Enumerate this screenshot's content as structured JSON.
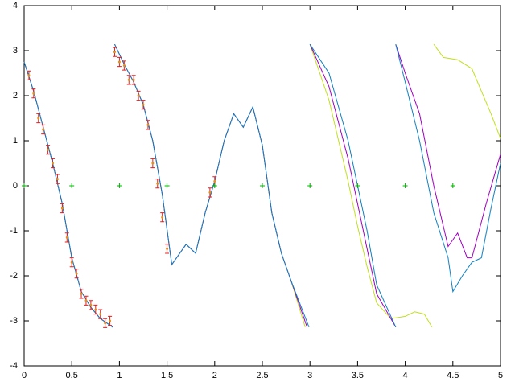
{
  "chart_data": {
    "type": "line",
    "xlim": [
      0,
      5
    ],
    "xticks": [
      0,
      0.5,
      1,
      1.5,
      2,
      2.5,
      3,
      3.5,
      4,
      4.5,
      5
    ],
    "ylim": [
      -4,
      4
    ],
    "yticks": [
      -4,
      -3,
      -2,
      -1,
      0,
      1,
      2,
      3,
      4
    ],
    "grid": false,
    "series": [
      {
        "style": "line",
        "color": "#c0e020",
        "x": [
          0,
          0.1,
          0.2,
          0.3,
          0.4,
          0.5,
          0.6,
          0.7,
          0.8,
          0.93,
          0.94,
          0.95,
          1.05,
          1.15,
          1.25,
          1.35,
          1.45,
          1.55,
          1.6,
          1.7,
          1.8,
          1.9,
          2.0,
          2.1,
          2.2,
          2.3,
          2.4,
          2.5,
          2.6,
          2.7,
          2.8,
          2.95,
          2.97,
          3.0,
          3.2,
          3.4,
          3.5,
          3.6,
          3.7,
          3.85,
          4.0,
          4.1,
          4.2,
          4.28,
          4.29,
          4.3,
          4.4,
          4.55,
          4.7,
          4.8,
          4.9,
          5.0
        ],
        "values": [
          2.75,
          2.1,
          1.3,
          0.5,
          -0.4,
          -1.6,
          -2.35,
          -2.7,
          -2.95,
          -3.14,
          null,
          3.14,
          2.7,
          2.3,
          1.8,
          1.0,
          -0.2,
          -1.75,
          -1.6,
          -1.3,
          -1.5,
          -0.6,
          0.1,
          1.0,
          1.6,
          1.3,
          1.75,
          0.9,
          -0.6,
          -1.5,
          -2.1,
          -3.14,
          null,
          3.14,
          1.9,
          0.1,
          -0.9,
          -1.8,
          -2.6,
          -2.95,
          -2.9,
          -2.8,
          -2.85,
          -3.14,
          null,
          3.14,
          2.85,
          2.8,
          2.6,
          2.1,
          1.6,
          1.05
        ]
      },
      {
        "style": "line",
        "color": "#a000c0",
        "x": [
          0,
          0.1,
          0.2,
          0.3,
          0.4,
          0.5,
          0.6,
          0.7,
          0.8,
          0.93,
          0.94,
          0.95,
          1.05,
          1.15,
          1.25,
          1.35,
          1.45,
          1.55,
          1.6,
          1.7,
          1.8,
          1.9,
          2.0,
          2.1,
          2.2,
          2.3,
          2.4,
          2.5,
          2.6,
          2.7,
          2.8,
          2.97,
          2.98,
          3.0,
          3.2,
          3.4,
          3.5,
          3.6,
          3.7,
          3.9,
          3.91,
          3.9,
          4.0,
          4.15,
          4.3,
          4.45,
          4.55,
          4.65,
          4.7,
          4.85,
          5.0
        ],
        "values": [
          2.75,
          2.1,
          1.3,
          0.5,
          -0.4,
          -1.6,
          -2.35,
          -2.7,
          -2.95,
          -3.14,
          null,
          3.14,
          2.7,
          2.3,
          1.8,
          1.0,
          -0.2,
          -1.75,
          -1.6,
          -1.3,
          -1.5,
          -0.6,
          0.1,
          1.0,
          1.6,
          1.3,
          1.75,
          0.9,
          -0.6,
          -1.5,
          -2.1,
          -3.14,
          null,
          3.14,
          2.2,
          0.6,
          -0.4,
          -1.4,
          -2.4,
          -3.14,
          null,
          3.14,
          2.5,
          1.6,
          0.0,
          -1.35,
          -1.05,
          -1.6,
          -1.6,
          -0.4,
          0.7
        ]
      },
      {
        "style": "line",
        "color": "#1080c0",
        "x": [
          0,
          0.1,
          0.2,
          0.3,
          0.4,
          0.5,
          0.6,
          0.7,
          0.8,
          0.93,
          0.94,
          0.95,
          1.05,
          1.15,
          1.25,
          1.35,
          1.45,
          1.55,
          1.6,
          1.7,
          1.8,
          1.9,
          2.0,
          2.1,
          2.2,
          2.3,
          2.4,
          2.5,
          2.6,
          2.7,
          2.8,
          2.99,
          2.995,
          3.0,
          3.2,
          3.4,
          3.5,
          3.6,
          3.7,
          3.9,
          3.91,
          3.9,
          4.0,
          4.15,
          4.3,
          4.45,
          4.5,
          4.6,
          4.7,
          4.8,
          4.9,
          5.0
        ],
        "values": [
          2.75,
          2.1,
          1.3,
          0.5,
          -0.4,
          -1.6,
          -2.35,
          -2.7,
          -2.95,
          -3.14,
          null,
          3.14,
          2.7,
          2.3,
          1.8,
          1.0,
          -0.2,
          -1.75,
          -1.6,
          -1.3,
          -1.5,
          -0.6,
          0.1,
          1.0,
          1.6,
          1.3,
          1.75,
          0.9,
          -0.6,
          -1.5,
          -2.1,
          -3.14,
          null,
          3.14,
          2.5,
          1.0,
          0.0,
          -1.0,
          -2.2,
          -3.14,
          null,
          3.14,
          2.3,
          1.0,
          -0.6,
          -1.6,
          -2.35,
          -2.0,
          -1.7,
          -1.6,
          -0.5,
          0.5
        ]
      },
      {
        "style": "errorbars",
        "color": "#e02020",
        "x": [
          0.05,
          0.1,
          0.15,
          0.2,
          0.25,
          0.3,
          0.35,
          0.4,
          0.45,
          0.5,
          0.55,
          0.6,
          0.65,
          0.7,
          0.75,
          0.8,
          0.85,
          0.9,
          0.95,
          1.0,
          1.05,
          1.1,
          1.15,
          1.2,
          1.25,
          1.3,
          1.35,
          1.4,
          1.45,
          1.5,
          1.95,
          2.0
        ],
        "values": [
          2.45,
          2.05,
          1.5,
          1.25,
          0.8,
          0.5,
          0.15,
          -0.5,
          -1.15,
          -1.7,
          -1.95,
          -2.4,
          -2.55,
          -2.65,
          -2.75,
          -2.85,
          -3.05,
          -3.0,
          2.97,
          2.75,
          2.67,
          2.35,
          2.35,
          2.0,
          1.8,
          1.35,
          0.5,
          0.05,
          -0.7,
          -1.4,
          -0.15,
          0.1
        ],
        "errors": [
          0.1,
          0.1,
          0.1,
          0.1,
          0.1,
          0.1,
          0.1,
          0.1,
          0.1,
          0.1,
          0.1,
          0.1,
          0.1,
          0.1,
          0.1,
          0.1,
          0.1,
          0.1,
          0.1,
          0.1,
          0.1,
          0.1,
          0.1,
          0.1,
          0.1,
          0.1,
          0.1,
          0.1,
          0.1,
          0.1,
          0.1,
          0.1
        ]
      },
      {
        "style": "points",
        "color": "#00b000",
        "x": [
          0,
          0.5,
          1,
          1.5,
          2,
          2.5,
          3,
          3.5,
          4,
          4.5
        ],
        "values": [
          0,
          0,
          0,
          0,
          0,
          0,
          0,
          0,
          0,
          0
        ]
      }
    ]
  }
}
